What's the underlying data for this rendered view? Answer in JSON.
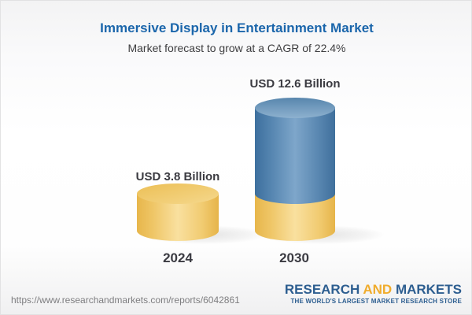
{
  "header": {
    "title": "Immersive Display in Entertainment Market",
    "subtitle": "Market forecast to grow at a CAGR of 22.4%"
  },
  "chart_data": {
    "type": "bar",
    "bar_style": "3d-cylinder",
    "categories": [
      "2024",
      "2030"
    ],
    "values": [
      3.8,
      12.6
    ],
    "value_labels": [
      "USD 3.8 Billion",
      "USD 12.6 Billion"
    ],
    "unit": "USD Billion",
    "cagr_percent": 22.4,
    "title": "Immersive Display in Entertainment Market",
    "subtitle": "Market forecast to grow at a CAGR of 22.4%",
    "legend": "none",
    "grid": false,
    "colors": {
      "bar_2024": "#f0c567",
      "bar_2030_segment_top": "#5585b0",
      "bar_2030_segment_base": "#f0c567",
      "title_text": "#1b66ab",
      "label_text": "#3a3a40"
    },
    "notes": "2030 cylinder is blue with a yellow base segment equal to the 2024 value"
  },
  "footer": {
    "url": "https://www.researchandmarkets.com/reports/6042861",
    "logo": {
      "word1": "RESEARCH",
      "word2": "AND",
      "word3": "MARKETS",
      "tagline": "THE WORLD'S LARGEST MARKET RESEARCH STORE",
      "color_primary": "#2d5e90",
      "color_accent": "#f0ac2c"
    }
  }
}
